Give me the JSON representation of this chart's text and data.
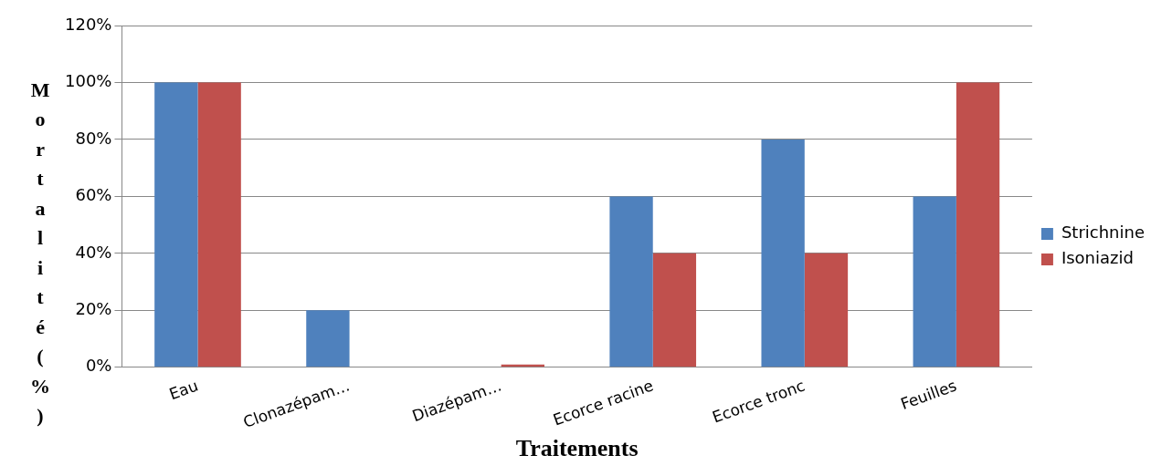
{
  "chart_data": {
    "type": "bar",
    "xlabel": "Traitements",
    "ylabel": "Mortalité (%)",
    "categories": [
      "Eau",
      "Clonazépam…",
      "Diazépam…",
      "Ecorce racine",
      "Ecorce tronc",
      "Feuilles"
    ],
    "series": [
      {
        "name": "Strichnine",
        "color": "#4f81bd",
        "values": [
          100,
          20,
          0,
          60,
          80,
          60
        ]
      },
      {
        "name": "Isoniazid",
        "color": "#c0504d",
        "values": [
          100,
          0,
          1,
          40,
          40,
          100
        ]
      }
    ],
    "ylim": [
      0,
      120
    ],
    "yticks": [
      {
        "value": 0,
        "label": "0%"
      },
      {
        "value": 20,
        "label": "20%"
      },
      {
        "value": 40,
        "label": "40%"
      },
      {
        "value": 60,
        "label": "60%"
      },
      {
        "value": 80,
        "label": "80%"
      },
      {
        "value": 100,
        "label": "100%"
      },
      {
        "value": 120,
        "label": "120%"
      }
    ],
    "grid": "y",
    "legend": "right"
  }
}
